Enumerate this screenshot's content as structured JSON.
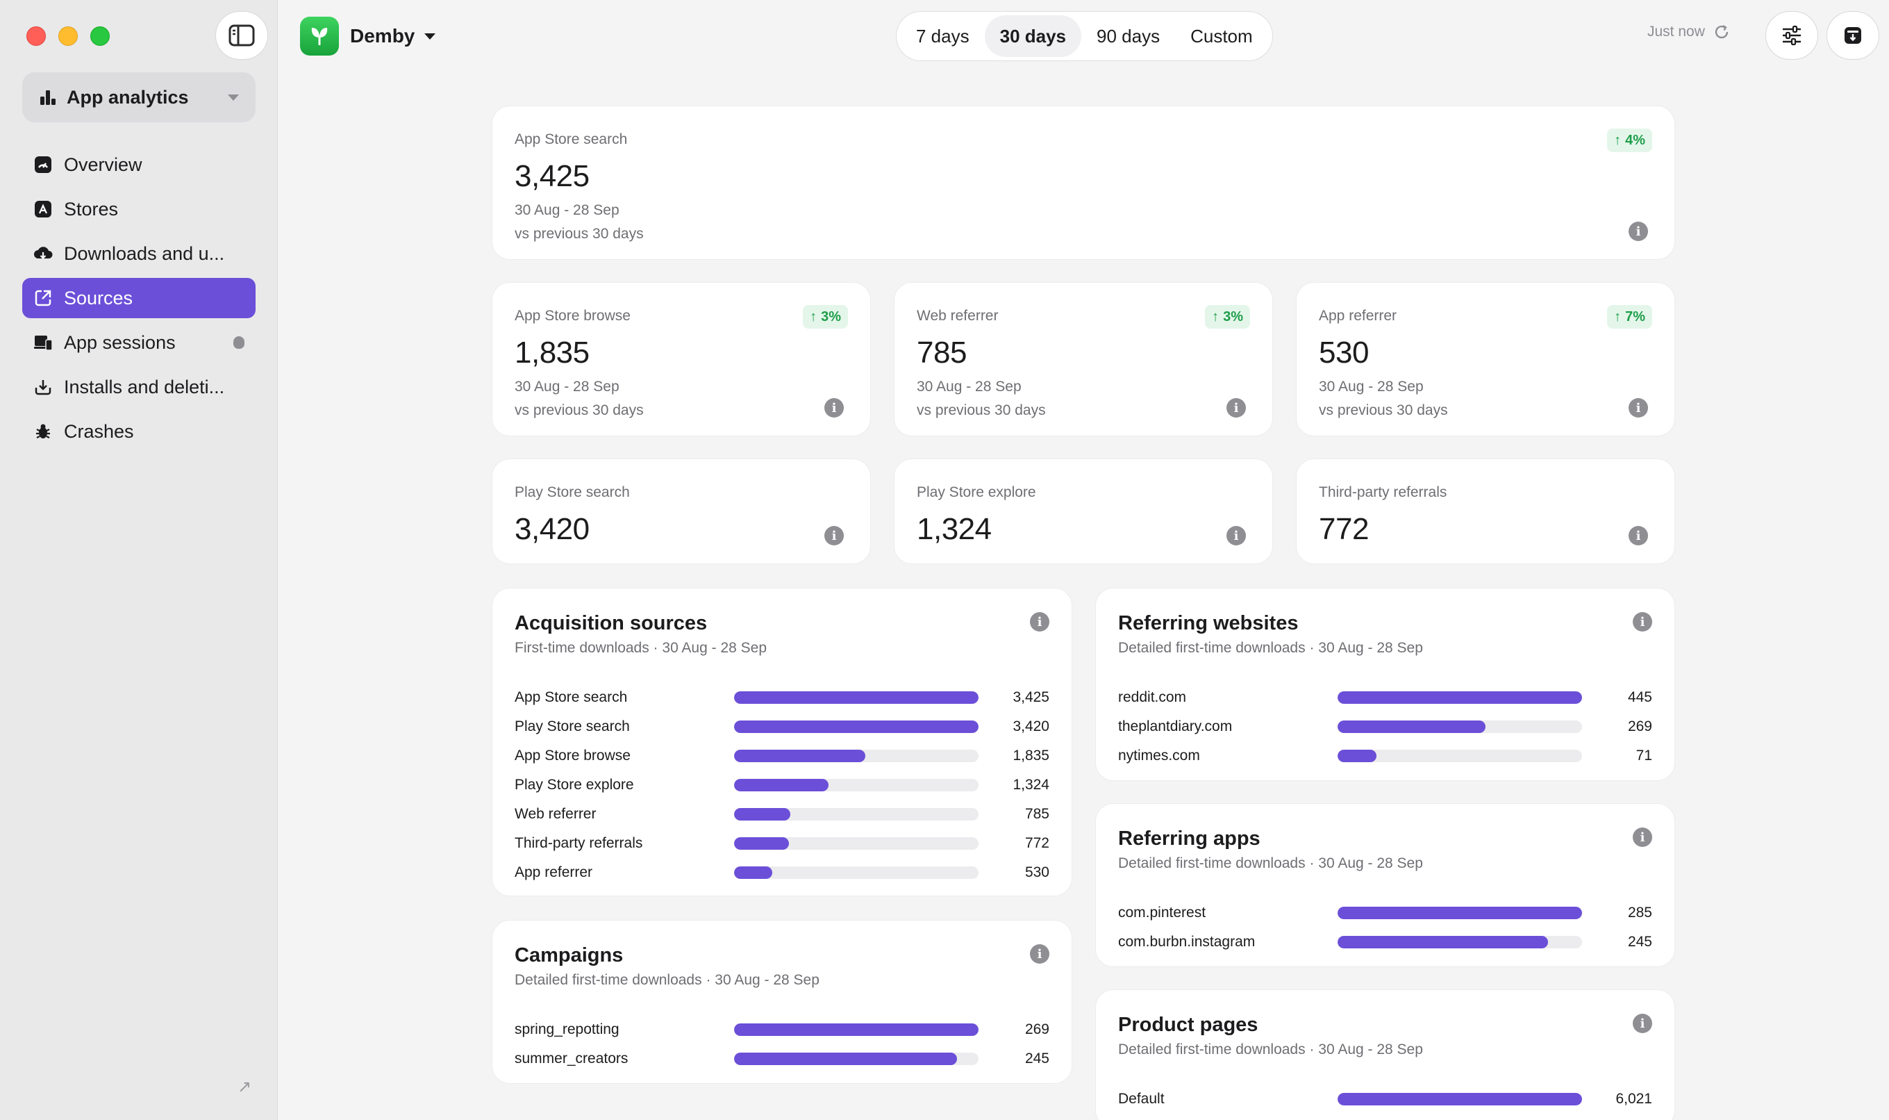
{
  "sidebar": {
    "app_selector": "App analytics",
    "items": [
      {
        "label": "Overview",
        "icon": "overview-icon",
        "active": false
      },
      {
        "label": "Stores",
        "icon": "app-store-icon",
        "active": false
      },
      {
        "label": "Downloads and u...",
        "icon": "download-cloud-icon",
        "active": false
      },
      {
        "label": "Sources",
        "icon": "external-link-icon",
        "active": true
      },
      {
        "label": "App sessions",
        "icon": "devices-icon",
        "active": false
      },
      {
        "label": "Installs and deleti...",
        "icon": "install-icon",
        "active": false
      },
      {
        "label": "Crashes",
        "icon": "bug-icon",
        "active": false
      }
    ]
  },
  "header": {
    "app_name": "Demby",
    "ranges": [
      "7 days",
      "30 days",
      "90 days",
      "Custom"
    ],
    "active_range": "30 days",
    "refresh_text": "Just now"
  },
  "metrics": {
    "app_store_search": {
      "label": "App Store search",
      "value": "3,425",
      "range": "30 Aug - 28 Sep",
      "compare": "vs previous 30 days",
      "change": "4%"
    },
    "app_store_browse": {
      "label": "App Store browse",
      "value": "1,835",
      "range": "30 Aug - 28 Sep",
      "compare": "vs previous 30 days",
      "change": "3%"
    },
    "web_referrer": {
      "label": "Web referrer",
      "value": "785",
      "range": "30 Aug - 28 Sep",
      "compare": "vs previous 30 days",
      "change": "3%"
    },
    "app_referrer": {
      "label": "App referrer",
      "value": "530",
      "range": "30 Aug - 28 Sep",
      "compare": "vs previous 30 days",
      "change": "7%"
    },
    "play_store_search": {
      "label": "Play Store search",
      "value": "3,420"
    },
    "play_store_explore": {
      "label": "Play Store explore",
      "value": "1,324"
    },
    "third_party": {
      "label": "Third-party referrals",
      "value": "772"
    }
  },
  "panels": {
    "acquisition": {
      "title": "Acquisition sources",
      "subtitle": "First-time downloads · 30 Aug - 28 Sep",
      "rows": [
        {
          "label": "App Store search",
          "value": "3,425",
          "fraction": 1.0
        },
        {
          "label": "Play Store search",
          "value": "3,420",
          "fraction": 0.999
        },
        {
          "label": "App Store browse",
          "value": "1,835",
          "fraction": 0.536
        },
        {
          "label": "Play Store explore",
          "value": "1,324",
          "fraction": 0.387
        },
        {
          "label": "Web referrer",
          "value": "785",
          "fraction": 0.229
        },
        {
          "label": "Third-party referrals",
          "value": "772",
          "fraction": 0.225
        },
        {
          "label": "App referrer",
          "value": "530",
          "fraction": 0.155
        }
      ]
    },
    "campaigns": {
      "title": "Campaigns",
      "subtitle": "Detailed first-time downloads · 30 Aug - 28 Sep",
      "rows": [
        {
          "label": "spring_repotting",
          "value": "269",
          "fraction": 1.0
        },
        {
          "label": "summer_creators",
          "value": "245",
          "fraction": 0.911
        }
      ]
    },
    "referring_websites": {
      "title": "Referring websites",
      "subtitle": "Detailed first-time downloads · 30 Aug - 28 Sep",
      "rows": [
        {
          "label": "reddit.com",
          "value": "445",
          "fraction": 1.0
        },
        {
          "label": "theplantdiary.com",
          "value": "269",
          "fraction": 0.604
        },
        {
          "label": "nytimes.com",
          "value": "71",
          "fraction": 0.16
        }
      ]
    },
    "referring_apps": {
      "title": "Referring apps",
      "subtitle": "Detailed first-time downloads · 30 Aug - 28 Sep",
      "rows": [
        {
          "label": "com.pinterest",
          "value": "285",
          "fraction": 1.0
        },
        {
          "label": "com.burbn.instagram",
          "value": "245",
          "fraction": 0.86
        }
      ]
    },
    "product_pages": {
      "title": "Product pages",
      "subtitle": "Detailed first-time downloads · 30 Aug - 28 Sep",
      "rows": [
        {
          "label": "Default",
          "value": "6,021",
          "fraction": 1.0
        }
      ]
    }
  },
  "colors": {
    "accent": "#6b4fd8",
    "positive": "#1e9e4a"
  }
}
